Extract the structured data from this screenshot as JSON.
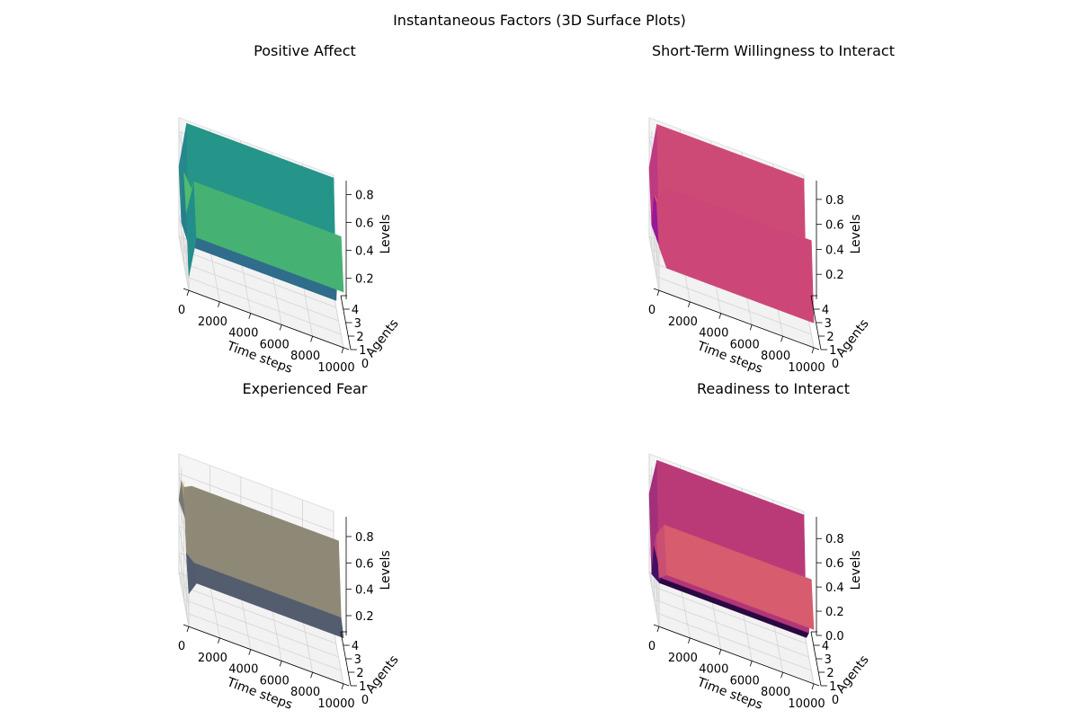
{
  "figure": {
    "suptitle": "Instantaneous Factors (3D Surface Plots)"
  },
  "chart_data": [
    {
      "type": "surface3d",
      "title": "Positive Affect",
      "xlabel": "Time steps",
      "ylabel": "Agents",
      "zlabel": "Levels",
      "colormap": "viridis",
      "xticks": [
        "0",
        "2000",
        "4000",
        "6000",
        "8000",
        "10000"
      ],
      "yticks": [
        "0",
        "1",
        "2",
        "3",
        "4"
      ],
      "zticks": [
        "0.2",
        "0.4",
        "0.6",
        "0.8"
      ],
      "xlim": [
        0,
        10000
      ],
      "ylim": [
        0,
        4
      ],
      "zlim": [
        0.05,
        0.9
      ],
      "agents": [
        0,
        1,
        2,
        3,
        4
      ],
      "time_steps": [
        0,
        500,
        10000
      ],
      "z_levels": [
        [
          0.15,
          0.45,
          0.45
        ],
        [
          0.5,
          0.75,
          0.75
        ],
        [
          0.7,
          0.6,
          0.6
        ],
        [
          0.25,
          0.1,
          0.1
        ],
        [
          0.55,
          0.88,
          0.88
        ]
      ],
      "grid": true
    },
    {
      "type": "surface3d",
      "title": "Short-Term Willingness to Interact",
      "xlabel": "Time steps",
      "ylabel": "Agents",
      "zlabel": "Levels",
      "colormap": "plasma",
      "xticks": [
        "0",
        "2000",
        "4000",
        "6000",
        "8000",
        "10000"
      ],
      "yticks": [
        "0",
        "1",
        "2",
        "3",
        "4"
      ],
      "zticks": [
        "0.2",
        "0.4",
        "0.6",
        "0.8"
      ],
      "xlim": [
        0,
        10000
      ],
      "ylim": [
        0,
        4
      ],
      "zlim": [
        0.0,
        0.95
      ],
      "agents": [
        0,
        1,
        2,
        3,
        4
      ],
      "time_steps": [
        0,
        500,
        10000
      ],
      "z_levels": [
        [
          0.35,
          0.2,
          0.2
        ],
        [
          0.6,
          0.75,
          0.75
        ],
        [
          0.55,
          0.45,
          0.45
        ],
        [
          0.2,
          0.05,
          0.05
        ],
        [
          0.55,
          0.92,
          0.92
        ]
      ],
      "grid": true
    },
    {
      "type": "surface3d",
      "title": "Experienced Fear",
      "xlabel": "Time steps",
      "ylabel": "Agents",
      "zlabel": "Levels",
      "colormap": "cividis",
      "xticks": [
        "0",
        "2000",
        "4000",
        "6000",
        "8000",
        "10000"
      ],
      "yticks": [
        "0",
        "1",
        "2",
        "3",
        "4"
      ],
      "zticks": [
        "0.2",
        "0.4",
        "0.6",
        "0.8"
      ],
      "xlim": [
        0,
        10000
      ],
      "ylim": [
        0,
        4
      ],
      "zlim": [
        0.05,
        0.95
      ],
      "agents": [
        0,
        1,
        2,
        3,
        4
      ],
      "time_steps": [
        0,
        500,
        10000
      ],
      "z_levels": [
        [
          0.3,
          0.4,
          0.4
        ],
        [
          0.5,
          0.45,
          0.45
        ],
        [
          0.9,
          0.93,
          0.93
        ],
        [
          0.85,
          0.45,
          0.45
        ],
        [
          0.6,
          0.45,
          0.45
        ]
      ],
      "grid": true
    },
    {
      "type": "surface3d",
      "title": "Readiness to Interact",
      "xlabel": "Time steps",
      "ylabel": "Agents",
      "zlabel": "Levels",
      "colormap": "magma",
      "xticks": [
        "0",
        "2000",
        "4000",
        "6000",
        "8000",
        "10000"
      ],
      "yticks": [
        "0",
        "1",
        "2",
        "3",
        "4"
      ],
      "zticks": [
        "0.0",
        "0.2",
        "0.4",
        "0.6",
        "0.8"
      ],
      "xlim": [
        0,
        10000
      ],
      "ylim": [
        0,
        4
      ],
      "zlim": [
        0.0,
        0.98
      ],
      "agents": [
        0,
        1,
        2,
        3,
        4
      ],
      "time_steps": [
        0,
        500,
        10000
      ],
      "z_levels": [
        [
          0.4,
          0.45,
          0.45
        ],
        [
          0.65,
          0.75,
          0.75
        ],
        [
          0.45,
          0.2,
          0.2
        ],
        [
          0.1,
          0.05,
          0.05
        ],
        [
          0.65,
          0.95,
          0.95
        ]
      ],
      "grid": true
    }
  ]
}
